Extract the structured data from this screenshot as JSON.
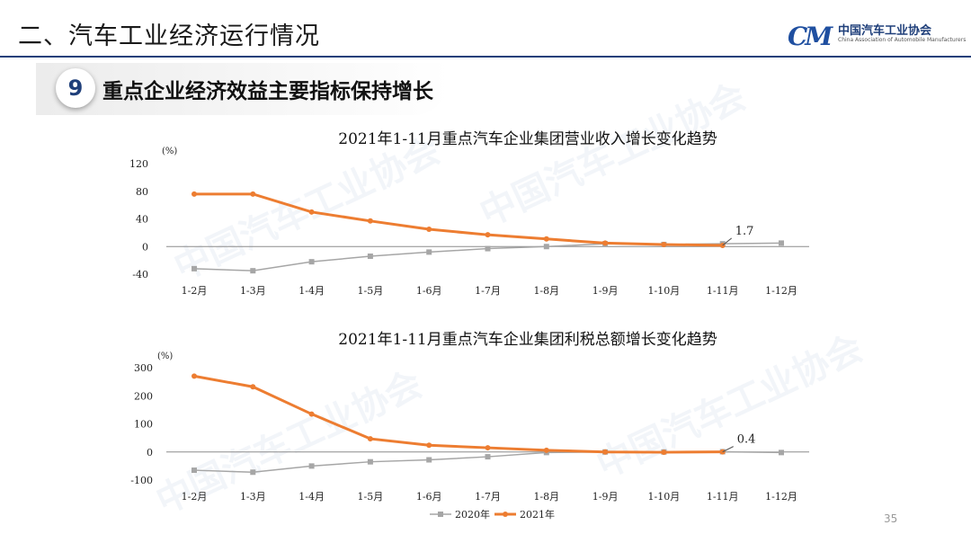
{
  "header": {
    "section_title": "二、汽车工业经济运行情况",
    "logo_mark": "CM",
    "logo_cn": "中国汽车工业协会",
    "logo_en": "China Association of Automobile Manufacturers",
    "badge_number": "9",
    "subtitle": "重点企业经济效益主要指标保持增长"
  },
  "page_number": "35",
  "colors": {
    "series_2020": "#a6a6a6",
    "series_2021": "#ed7d31",
    "brand": "#1f3f7a"
  },
  "chart_data": [
    {
      "type": "line",
      "title": "2021年1-11月重点汽车企业集团营业收入增长变化趋势",
      "ylabel": "(%)",
      "categories": [
        "1-2月",
        "1-3月",
        "1-4月",
        "1-5月",
        "1-6月",
        "1-7月",
        "1-8月",
        "1-9月",
        "1-10月",
        "1-11月",
        "1-12月"
      ],
      "ylim": [
        -40,
        120
      ],
      "yticks": [
        "120",
        "80",
        "40",
        "0",
        "-40"
      ],
      "series": [
        {
          "name": "2020年",
          "values": [
            -32,
            -35,
            -22,
            -14,
            -8,
            -3,
            0,
            4,
            3,
            4,
            5
          ]
        },
        {
          "name": "2021年",
          "values": [
            76,
            76,
            50,
            37,
            25,
            17,
            11,
            5,
            3,
            1.7,
            null
          ]
        }
      ],
      "annotation": "1.7",
      "grid": false
    },
    {
      "type": "line",
      "title": "2021年1-11月重点汽车企业集团利税总额增长变化趋势",
      "ylabel": "(%)",
      "categories": [
        "1-2月",
        "1-3月",
        "1-4月",
        "1-5月",
        "1-6月",
        "1-7月",
        "1-8月",
        "1-9月",
        "1-10月",
        "1-11月",
        "1-12月"
      ],
      "ylim": [
        -100,
        300
      ],
      "yticks": [
        "300",
        "200",
        "100",
        "0",
        "-100"
      ],
      "series": [
        {
          "name": "2020年",
          "values": [
            -65,
            -72,
            -50,
            -35,
            -28,
            -17,
            -2,
            0,
            0,
            1,
            -2
          ]
        },
        {
          "name": "2021年",
          "values": [
            270,
            232,
            135,
            47,
            24,
            15,
            6,
            0,
            -1,
            0.4,
            null
          ]
        }
      ],
      "annotation": "0.4",
      "grid": false
    }
  ],
  "legend": [
    "2020年",
    "2021年"
  ]
}
